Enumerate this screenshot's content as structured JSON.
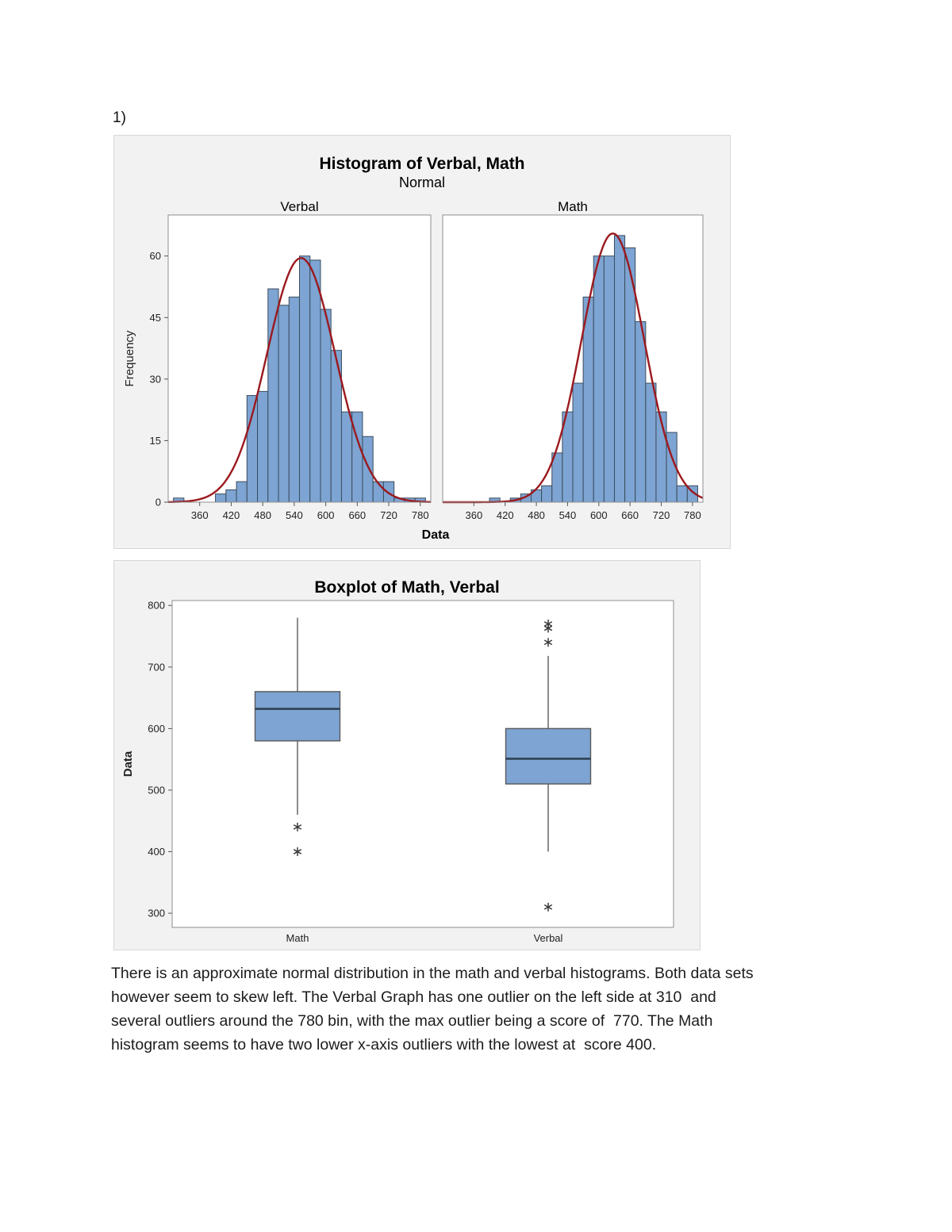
{
  "page": {
    "item_label": "1)",
    "commentary_lines": [
      "There is an approximate normal distribution in the math and verbal histograms. Both data sets",
      "however seem to skew left. The Verbal Graph has one outlier on the left side at 310  and",
      "several outliers around the 780 bin, with the max outlier being a score of  770. The Math",
      "histogram seems to have two lower x-axis outliers with the lowest at  score 400."
    ]
  },
  "colors": {
    "figure_bg": "#f2f2f2",
    "figure_border": "#d7d7d7",
    "plot_bg": "#ffffff",
    "plot_border": "#8f8f8f",
    "bar_fill": "#7da4d2",
    "bar_border": "#3c4c5e",
    "curve": "#9b191e",
    "whisker": "#4d4d4d",
    "box_border": "#5a5a5a",
    "median": "#2f4154",
    "outlier": "#3a3a3a",
    "tick_text": "#222222",
    "title_text": "#000000"
  },
  "chart_data": [
    {
      "type": "histogram",
      "title": "Histogram of Verbal, Math",
      "subtitle": "Normal",
      "xlabel": "Data",
      "ylabel": "Frequency",
      "x_ticks": [
        360,
        420,
        480,
        540,
        600,
        660,
        720,
        780
      ],
      "y_ticks": [
        0,
        15,
        30,
        45,
        60
      ],
      "xlim": [
        300,
        800
      ],
      "ylim": [
        0,
        70
      ],
      "bin_width": 20,
      "panels": [
        {
          "label": "Verbal",
          "bins": [
            [
              320,
              1
            ],
            [
              400,
              2
            ],
            [
              420,
              3
            ],
            [
              440,
              5
            ],
            [
              460,
              26
            ],
            [
              480,
              27
            ],
            [
              500,
              52
            ],
            [
              520,
              48
            ],
            [
              540,
              50
            ],
            [
              560,
              60
            ],
            [
              580,
              59
            ],
            [
              600,
              47
            ],
            [
              620,
              37
            ],
            [
              640,
              22
            ],
            [
              660,
              22
            ],
            [
              680,
              16
            ],
            [
              700,
              5
            ],
            [
              720,
              5
            ],
            [
              740,
              1
            ],
            [
              760,
              1
            ],
            [
              780,
              1
            ]
          ],
          "normal_curve": {
            "mean": 553,
            "sd": 65,
            "peak": 59.5
          }
        },
        {
          "label": "Math",
          "bins": [
            [
              400,
              1
            ],
            [
              440,
              1
            ],
            [
              460,
              2
            ],
            [
              480,
              3
            ],
            [
              500,
              4
            ],
            [
              520,
              12
            ],
            [
              540,
              22
            ],
            [
              560,
              29
            ],
            [
              580,
              50
            ],
            [
              600,
              60
            ],
            [
              620,
              60
            ],
            [
              640,
              65
            ],
            [
              660,
              62
            ],
            [
              680,
              44
            ],
            [
              700,
              29
            ],
            [
              720,
              22
            ],
            [
              740,
              17
            ],
            [
              760,
              4
            ],
            [
              780,
              4
            ]
          ],
          "normal_curve": {
            "mean": 627,
            "sd": 60,
            "peak": 65.5
          }
        }
      ]
    },
    {
      "type": "boxplot",
      "title": "Boxplot of Math, Verbal",
      "ylabel": "Data",
      "y_ticks": [
        300,
        400,
        500,
        600,
        700,
        800
      ],
      "ylim": [
        277,
        808
      ],
      "groups": [
        {
          "label": "Math",
          "whisker_low": 460,
          "q1": 580,
          "median": 632,
          "q3": 660,
          "whisker_high": 780,
          "outliers": [
            440,
            400
          ]
        },
        {
          "label": "Verbal",
          "whisker_low": 400,
          "q1": 510,
          "median": 551,
          "q3": 600,
          "whisker_high": 718,
          "outliers": [
            770,
            763,
            740,
            310
          ]
        }
      ]
    }
  ]
}
